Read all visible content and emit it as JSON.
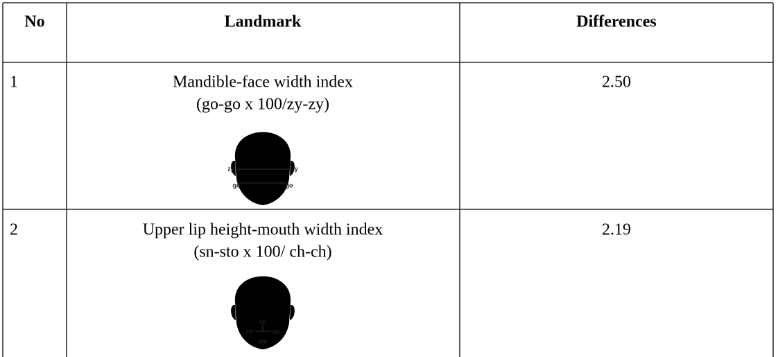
{
  "table": {
    "header": [
      "No",
      "Landmark",
      "Differences"
    ],
    "rows": [
      {
        "no": "1",
        "landmark": [
          "Mandible-face width index",
          "(go-go x 100/zy-zy)"
        ],
        "difference": "2.50",
        "figure_labels": [
          "zy",
          "zy",
          "go",
          "go"
        ]
      },
      {
        "no": "2",
        "landmark": [
          "Upper lip height-mouth width index",
          "(sn-sto x 100/ ch-ch)"
        ],
        "difference": "2.19",
        "figure_labels": [
          "sn",
          "ch",
          "ch",
          "sto"
        ]
      }
    ]
  }
}
